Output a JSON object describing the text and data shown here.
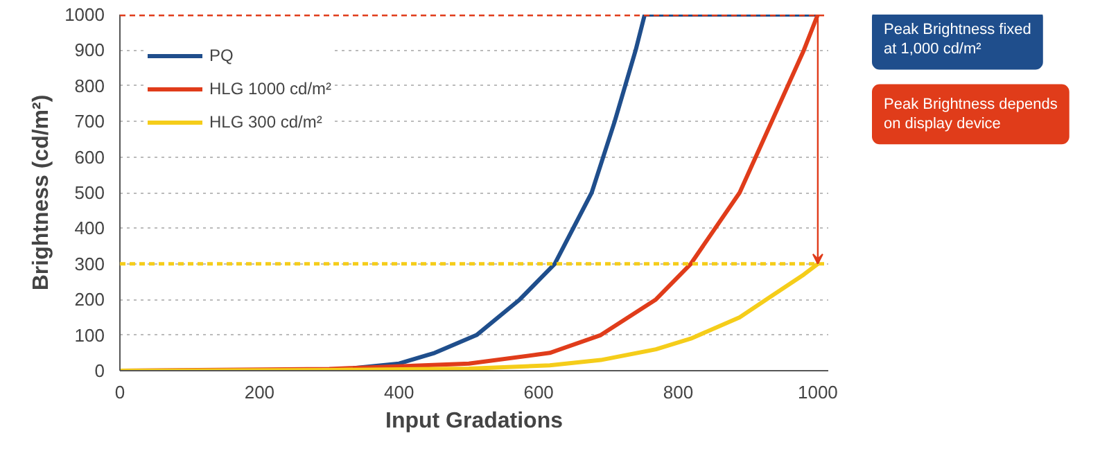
{
  "chart_data": {
    "type": "line",
    "xlabel": "Input Gradations",
    "ylabel": "Brightness (cd/m²)",
    "xlim": [
      0,
      1015
    ],
    "ylim": [
      0,
      1000
    ],
    "xticks": [
      0,
      200,
      400,
      600,
      800,
      1000
    ],
    "yticks": [
      0,
      100,
      200,
      300,
      400,
      500,
      600,
      700,
      800,
      900,
      1000
    ],
    "grid": "y",
    "legend": "top left",
    "line_style": "solid",
    "series": [
      {
        "name": "PQ",
        "color": "#1f4e8c",
        "x": [
          0,
          300,
          400,
          451,
          511,
          573,
          623,
          676,
          709,
          739,
          752,
          1000
        ],
        "values": [
          0,
          0,
          20,
          50,
          100,
          200,
          300,
          500,
          700,
          900,
          1000,
          1000
        ]
      },
      {
        "name": "HLG 1000 cd/m²",
        "color": "#e03c1a",
        "x": [
          0,
          300,
          500,
          616,
          689,
          768,
          818,
          888,
          934,
          980,
          1000
        ],
        "values": [
          0,
          5,
          20,
          50,
          100,
          200,
          300,
          500,
          700,
          900,
          1000
        ]
      },
      {
        "name": "HLG 300 cd/m²",
        "color": "#f5cd1a",
        "x": [
          0,
          300,
          500,
          616,
          689,
          768,
          818,
          888,
          934,
          980,
          1000
        ],
        "values": [
          0,
          2,
          6,
          15,
          30,
          60,
          90,
          150,
          210,
          270,
          300
        ]
      }
    ],
    "ref_lines": [
      {
        "axis": "y",
        "value": 1000,
        "color": "#e03c1a",
        "line_style": "dashed"
      },
      {
        "axis": "y",
        "value": 300,
        "color": "#f5cd1a",
        "line_style": "dashed"
      }
    ],
    "annotations": [
      "Peak Brightness fixed\nat 1,000 cd/m²",
      "Peak Brightness depends\non display device"
    ]
  }
}
